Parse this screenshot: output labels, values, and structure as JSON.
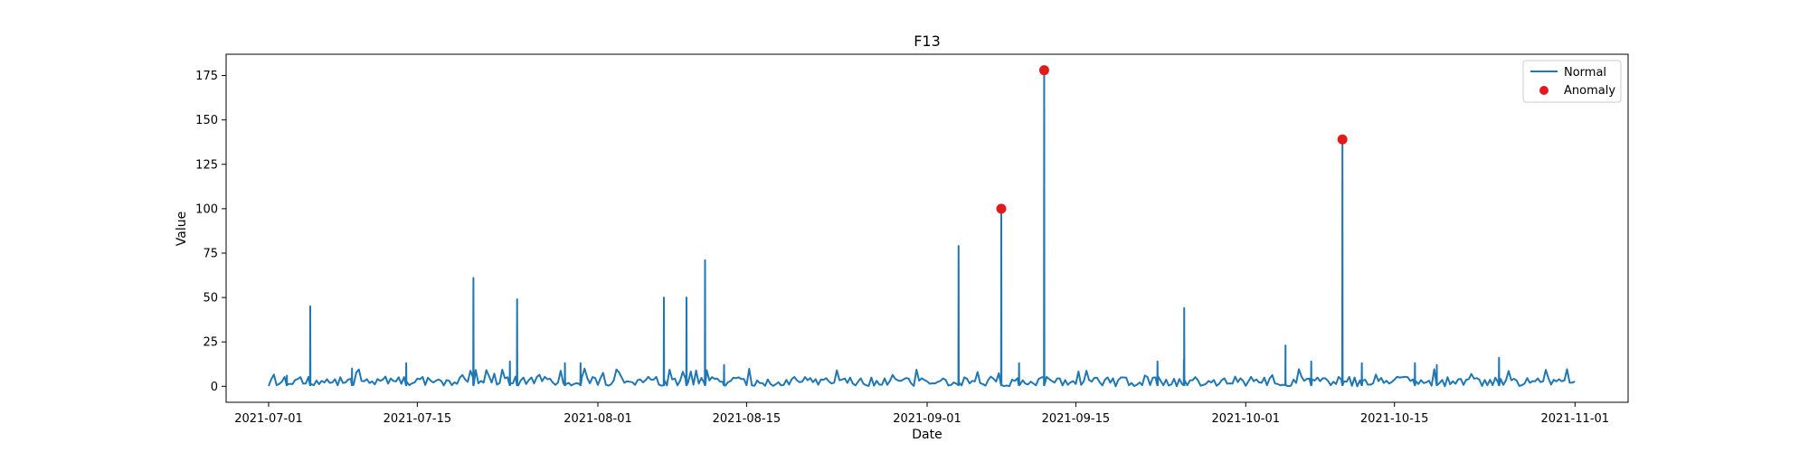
{
  "chart_data": {
    "type": "line",
    "title": "F13",
    "xlabel": "Date",
    "ylabel": "Value",
    "x_range": [
      "2021-06-27",
      "2021-11-06"
    ],
    "ylim": [
      -9,
      187
    ],
    "x_ticks": [
      "2021-07-01",
      "2021-07-15",
      "2021-08-01",
      "2021-08-15",
      "2021-09-01",
      "2021-09-15",
      "2021-10-01",
      "2021-10-15",
      "2021-11-01"
    ],
    "y_ticks": [
      0,
      25,
      50,
      75,
      100,
      125,
      150,
      175
    ],
    "legend_position": "top-right",
    "grid": false,
    "series": [
      {
        "name": "Normal",
        "kind": "line",
        "color": "#1f77b4",
        "start": "2021-07-01",
        "end": "2021-11-01",
        "baseline_max": 10,
        "spikes": [
          {
            "x": "2021-07-03",
            "y": 6
          },
          {
            "x": "2021-07-05",
            "y": 45
          },
          {
            "x": "2021-07-09",
            "y": 10
          },
          {
            "x": "2021-07-14",
            "y": 13
          },
          {
            "x": "2021-07-20",
            "y": 61
          },
          {
            "x": "2021-07-24",
            "y": 49
          },
          {
            "x": "2021-07-24",
            "y": 14
          },
          {
            "x": "2021-07-29",
            "y": 13
          },
          {
            "x": "2021-07-30",
            "y": 13
          },
          {
            "x": "2021-08-07",
            "y": 50
          },
          {
            "x": "2021-08-09",
            "y": 50
          },
          {
            "x": "2021-08-11",
            "y": 71
          },
          {
            "x": "2021-08-13",
            "y": 12
          },
          {
            "x": "2021-09-04",
            "y": 79
          },
          {
            "x": "2021-09-08",
            "y": 100
          },
          {
            "x": "2021-09-10",
            "y": 13
          },
          {
            "x": "2021-09-12",
            "y": 178
          },
          {
            "x": "2021-09-23",
            "y": 14
          },
          {
            "x": "2021-09-25",
            "y": 44
          },
          {
            "x": "2021-09-25",
            "y": 15
          },
          {
            "x": "2021-10-05",
            "y": 23
          },
          {
            "x": "2021-10-07",
            "y": 14
          },
          {
            "x": "2021-10-10",
            "y": 139
          },
          {
            "x": "2021-10-12",
            "y": 13
          },
          {
            "x": "2021-10-17",
            "y": 13
          },
          {
            "x": "2021-10-19",
            "y": 12
          },
          {
            "x": "2021-10-25",
            "y": 16
          }
        ]
      },
      {
        "name": "Anomaly",
        "kind": "scatter",
        "color": "#e31a1c",
        "points": [
          {
            "x": "2021-09-08",
            "y": 100
          },
          {
            "x": "2021-09-12",
            "y": 178
          },
          {
            "x": "2021-10-10",
            "y": 139
          }
        ]
      }
    ]
  }
}
